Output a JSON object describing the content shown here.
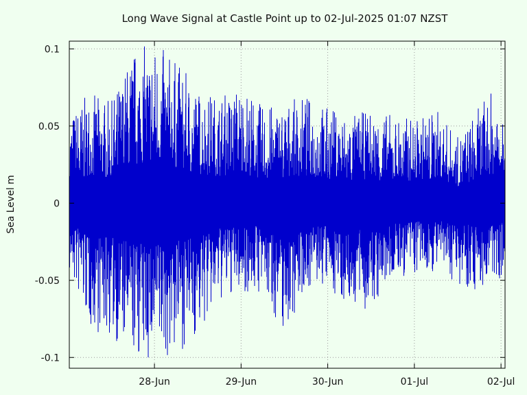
{
  "chart_data": {
    "type": "line",
    "title": "Long Wave Signal at Castle Point up to 02-Jul-2025 01:07 NZST",
    "xlabel": "",
    "ylabel": "Sea Level m",
    "x_start": "2025-06-27T00:25",
    "x_end": "2025-07-02T01:07",
    "xticks": [
      {
        "label": "28-Jun",
        "x": "2025-06-28T00:00"
      },
      {
        "label": "29-Jun",
        "x": "2025-06-29T00:00"
      },
      {
        "label": "30-Jun",
        "x": "2025-06-30T00:00"
      },
      {
        "label": "01-Jul",
        "x": "2025-07-01T00:00"
      },
      {
        "label": "02-Jul",
        "x": "2025-07-02T00:00"
      }
    ],
    "yticks": [
      {
        "label": "0.1",
        "y": 0.1
      },
      {
        "label": "0.05",
        "y": 0.05
      },
      {
        "label": "0",
        "y": 0
      },
      {
        "label": "-0.05",
        "y": -0.05
      },
      {
        "label": "-0.1",
        "y": -0.1
      }
    ],
    "ylim": [
      -0.107,
      0.105
    ],
    "grid": true,
    "series": [
      {
        "color": "#0000cc",
        "envelope": [
          {
            "x": "2025-06-27T00:25",
            "max": 0.058,
            "min": -0.047
          },
          {
            "x": "2025-06-27T06:00",
            "max": 0.072,
            "min": -0.082
          },
          {
            "x": "2025-06-27T12:00",
            "max": 0.066,
            "min": -0.088
          },
          {
            "x": "2025-06-27T18:00",
            "max": 0.1,
            "min": -0.1
          },
          {
            "x": "2025-06-28T00:00",
            "max": 0.105,
            "min": -0.107
          },
          {
            "x": "2025-06-28T06:00",
            "max": 0.093,
            "min": -0.098
          },
          {
            "x": "2025-06-28T12:00",
            "max": 0.075,
            "min": -0.087
          },
          {
            "x": "2025-06-28T18:00",
            "max": 0.07,
            "min": -0.065
          },
          {
            "x": "2025-06-29T00:00",
            "max": 0.078,
            "min": -0.058
          },
          {
            "x": "2025-06-29T06:00",
            "max": 0.063,
            "min": -0.06
          },
          {
            "x": "2025-06-29T12:00",
            "max": 0.065,
            "min": -0.086
          },
          {
            "x": "2025-06-29T18:00",
            "max": 0.07,
            "min": -0.055
          },
          {
            "x": "2025-06-30T00:00",
            "max": 0.063,
            "min": -0.056
          },
          {
            "x": "2025-06-30T06:00",
            "max": 0.058,
            "min": -0.067
          },
          {
            "x": "2025-06-30T12:00",
            "max": 0.06,
            "min": -0.072
          },
          {
            "x": "2025-06-30T18:00",
            "max": 0.058,
            "min": -0.05
          },
          {
            "x": "2025-07-01T00:00",
            "max": 0.055,
            "min": -0.048
          },
          {
            "x": "2025-07-01T06:00",
            "max": 0.062,
            "min": -0.044
          },
          {
            "x": "2025-07-01T12:00",
            "max": 0.043,
            "min": -0.052
          },
          {
            "x": "2025-07-01T18:00",
            "max": 0.063,
            "min": -0.058
          },
          {
            "x": "2025-07-02T01:07",
            "max": 0.083,
            "min": -0.047
          }
        ]
      }
    ]
  }
}
